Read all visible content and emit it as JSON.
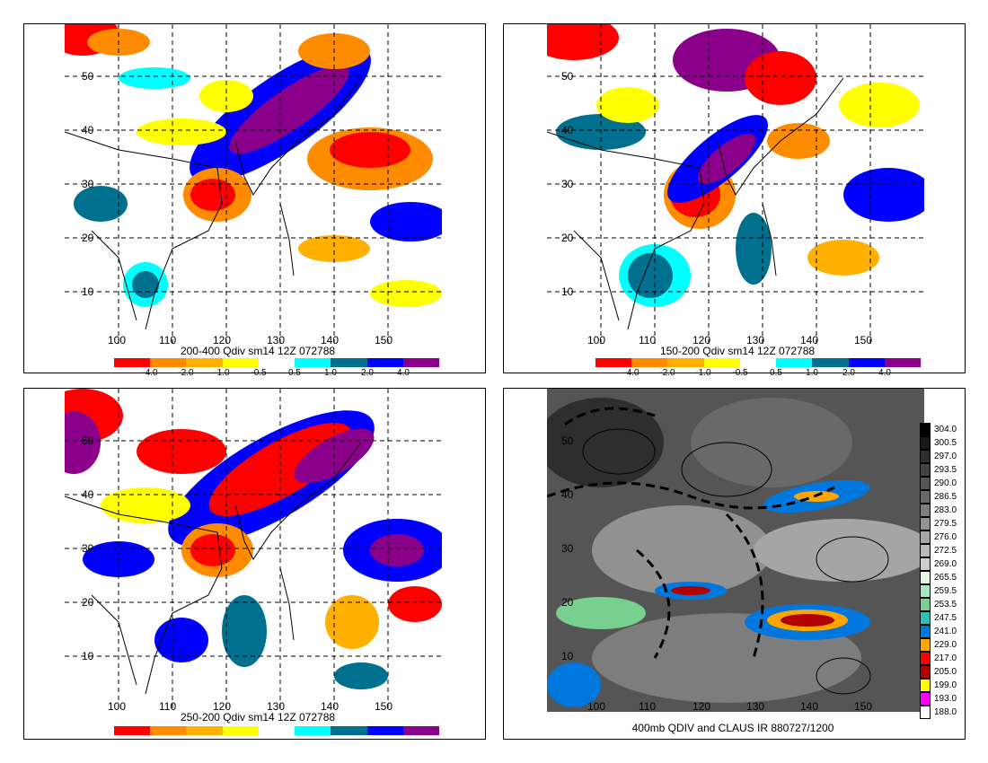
{
  "panels": [
    {
      "id": "p1",
      "title": "200-400 Qdiv sm14 12Z 072788",
      "lat_labels": [
        "50",
        "40",
        "30",
        "20",
        "10"
      ],
      "lon_labels": [
        "100",
        "110",
        "120",
        "130",
        "140",
        "150"
      ],
      "cbar_labels": [
        "-4.0",
        "-2.0",
        "-1.0",
        "-0.5",
        "0.5",
        "1.0",
        "2.0",
        "4.0"
      ]
    },
    {
      "id": "p2",
      "title": "150-200 Qdiv sm14 12Z 072788",
      "lat_labels": [
        "50",
        "40",
        "30",
        "20",
        "10"
      ],
      "lon_labels": [
        "100",
        "110",
        "120",
        "130",
        "140",
        "150"
      ],
      "cbar_labels": [
        "-4.0",
        "-2.0",
        "-1.0",
        "-0.5",
        "0.5",
        "1.0",
        "2.0",
        "4.0"
      ]
    },
    {
      "id": "p3",
      "title": "250-200 Qdiv sm14 12Z 072788",
      "lat_labels": [
        "50",
        "40",
        "30",
        "20",
        "10"
      ],
      "lon_labels": [
        "100",
        "110",
        "120",
        "130",
        "140",
        "150"
      ],
      "cbar_labels": []
    },
    {
      "id": "p4",
      "title": "400mb QDIV and CLAUS IR 880727/1200",
      "lat_labels": [
        "50",
        "40",
        "30",
        "20",
        "10"
      ],
      "lon_labels": [
        "100",
        "110",
        "120",
        "130",
        "140",
        "150"
      ],
      "ir_scale": [
        "304.0",
        "300.5",
        "297.0",
        "293.5",
        "290.0",
        "286.5",
        "283.0",
        "279.5",
        "276.0",
        "272.5",
        "269.0",
        "265.5",
        "259.5",
        "253.5",
        "247.5",
        "241.0",
        "229.0",
        "217.0",
        "205.0",
        "199.0",
        "193.0",
        "188.0"
      ]
    }
  ],
  "qdiv_colors": [
    "#ff0000",
    "#ff8c00",
    "#ffb000",
    "#ffff00",
    "#ffffff",
    "#00ffff",
    "#00708f",
    "#0000ff",
    "#8b008b"
  ],
  "ir_colors": [
    "#000000",
    "#1a1a1a",
    "#2e2e2e",
    "#424242",
    "#555555",
    "#696969",
    "#7d7d7d",
    "#919191",
    "#a5a5a5",
    "#b9b9b9",
    "#cdcdcd",
    "#e6f7e6",
    "#a8e6c8",
    "#77d08f",
    "#33c0b0",
    "#0077dd",
    "#ffa500",
    "#ff0000",
    "#b00000",
    "#ffff00",
    "#ff00ff",
    "#ffffff"
  ]
}
